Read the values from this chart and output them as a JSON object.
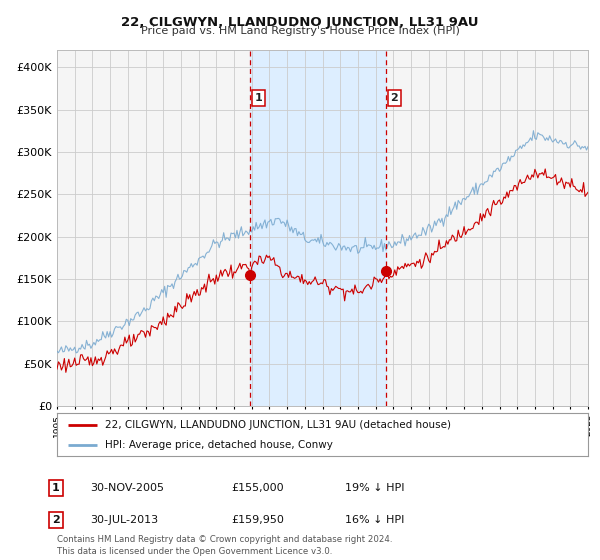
{
  "title": "22, CILGWYN, LLANDUDNO JUNCTION, LL31 9AU",
  "subtitle": "Price paid vs. HM Land Registry's House Price Index (HPI)",
  "legend_house": "22, CILGWYN, LLANDUDNO JUNCTION, LL31 9AU (detached house)",
  "legend_hpi": "HPI: Average price, detached house, Conwy",
  "annotation1_label": "1",
  "annotation1_date": "30-NOV-2005",
  "annotation1_price": "£155,000",
  "annotation1_pct": "19% ↓ HPI",
  "annotation2_label": "2",
  "annotation2_date": "30-JUL-2013",
  "annotation2_price": "£159,950",
  "annotation2_pct": "16% ↓ HPI",
  "footer": "Contains HM Land Registry data © Crown copyright and database right 2024.\nThis data is licensed under the Open Government Licence v3.0.",
  "house_color": "#cc0000",
  "hpi_color": "#7aaad0",
  "shade_color": "#ddeeff",
  "vline_color": "#cc0000",
  "grid_color": "#cccccc",
  "bg_color": "#ffffff",
  "plot_bg_color": "#f5f5f5",
  "ylim": [
    0,
    420000
  ],
  "yticks": [
    0,
    50000,
    100000,
    150000,
    200000,
    250000,
    300000,
    350000,
    400000
  ],
  "ytick_labels": [
    "£0",
    "£50K",
    "£100K",
    "£150K",
    "£200K",
    "£250K",
    "£300K",
    "£350K",
    "£400K"
  ],
  "start_year": 1995,
  "end_year": 2025,
  "sale1_year": 2005.92,
  "sale1_price": 155000,
  "sale2_year": 2013.58,
  "sale2_price": 159950
}
